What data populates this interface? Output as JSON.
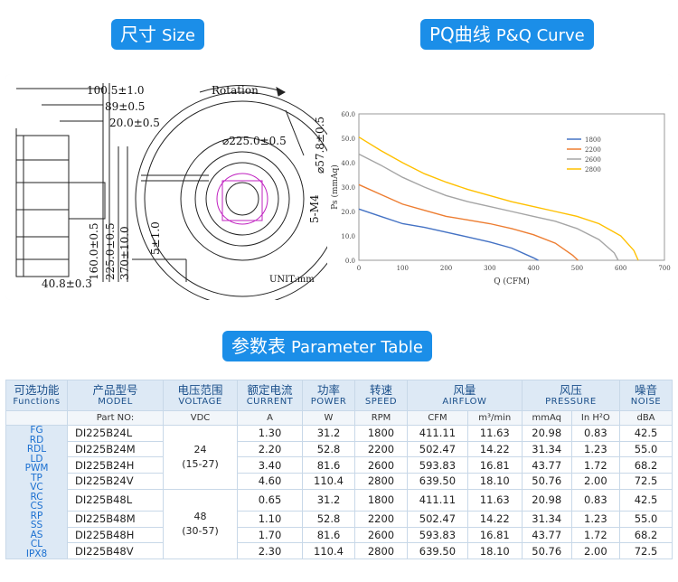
{
  "headers": {
    "size": {
      "cn": "尺寸",
      "en": "Size"
    },
    "pq": {
      "cn": "PQ曲线",
      "en": "P&Q Curve"
    },
    "params": {
      "cn": "参数表",
      "en": "Parameter Table"
    }
  },
  "drawing": {
    "d1": "100.5±1.0",
    "d2": "89±0.5",
    "d3": "20.0±0.5",
    "d4": "160.0±0.5",
    "d5": "225.0±0.5",
    "d6": "370±10.0",
    "d7": "5±1.0",
    "d8": "40.8±0.3",
    "rotation": "Rotation",
    "dia": "⌀225.0±0.5",
    "dia2": "⌀57.8±0.5",
    "screw": "5-M4",
    "unit": "UNIT:mm"
  },
  "chart_data": {
    "type": "line",
    "xlabel": "Q (CFM)",
    "ylabel": "Ps (mmAq)",
    "xlim": [
      0,
      700
    ],
    "ylim": [
      0,
      60
    ],
    "xticks": [
      "0",
      "100",
      "200",
      "300",
      "400",
      "500",
      "600",
      "700"
    ],
    "yticks": [
      "0.0",
      "10.0",
      "20.0",
      "30.0",
      "40.0",
      "50.0",
      "60.0"
    ],
    "legend_position": "right",
    "series": [
      {
        "name": "1800",
        "color": "#4472c4",
        "points": [
          [
            0,
            21
          ],
          [
            50,
            18
          ],
          [
            100,
            15
          ],
          [
            150,
            13.5
          ],
          [
            200,
            11.5
          ],
          [
            250,
            9.5
          ],
          [
            300,
            7.5
          ],
          [
            350,
            5
          ],
          [
            400,
            1
          ],
          [
            411,
            0
          ]
        ]
      },
      {
        "name": "2200",
        "color": "#ed7d31",
        "points": [
          [
            0,
            31
          ],
          [
            50,
            27
          ],
          [
            100,
            23
          ],
          [
            150,
            20.5
          ],
          [
            200,
            18
          ],
          [
            250,
            16.5
          ],
          [
            300,
            15
          ],
          [
            350,
            13
          ],
          [
            400,
            10.5
          ],
          [
            450,
            7
          ],
          [
            490,
            2
          ],
          [
            502,
            0
          ]
        ]
      },
      {
        "name": "2600",
        "color": "#a5a5a5",
        "points": [
          [
            0,
            43.5
          ],
          [
            50,
            39
          ],
          [
            100,
            34
          ],
          [
            150,
            30
          ],
          [
            200,
            26.5
          ],
          [
            250,
            24
          ],
          [
            300,
            22
          ],
          [
            350,
            20
          ],
          [
            400,
            18
          ],
          [
            450,
            16
          ],
          [
            500,
            13
          ],
          [
            550,
            8.5
          ],
          [
            585,
            3
          ],
          [
            594,
            0
          ]
        ]
      },
      {
        "name": "2800",
        "color": "#ffc000",
        "points": [
          [
            0,
            50.5
          ],
          [
            50,
            45
          ],
          [
            100,
            40
          ],
          [
            150,
            35.5
          ],
          [
            200,
            32
          ],
          [
            250,
            29
          ],
          [
            300,
            26.5
          ],
          [
            350,
            24
          ],
          [
            400,
            22
          ],
          [
            450,
            20
          ],
          [
            500,
            18
          ],
          [
            550,
            15
          ],
          [
            600,
            10
          ],
          [
            630,
            4
          ],
          [
            640,
            0
          ]
        ]
      }
    ]
  },
  "table": {
    "headers": [
      {
        "cn": "可选功能",
        "en": "Functions"
      },
      {
        "cn": "产品型号",
        "en": "MODEL"
      },
      {
        "cn": "电压范围",
        "en": "VOLTAGE"
      },
      {
        "cn": "额定电流",
        "en": "CURRENT"
      },
      {
        "cn": "功率",
        "en": "POWER"
      },
      {
        "cn": "转速",
        "en": "SPEED"
      },
      {
        "cn": "风量",
        "en": "AIRFLOW"
      },
      {
        "cn": "风压",
        "en": "PRESSURE"
      },
      {
        "cn": "噪音",
        "en": "NOISE"
      }
    ],
    "units": [
      "Part NO:",
      "VDC",
      "A",
      "W",
      "RPM",
      "CFM",
      "m³/min",
      "mmAq",
      "In H²O",
      "dBA"
    ],
    "functions": [
      "FG",
      "RD",
      "RDL",
      "LD",
      "PWM",
      "TP",
      "VC",
      "RC",
      "CS",
      "RP",
      "SS",
      "AS",
      "CL",
      "IPX8"
    ],
    "voltage_groups": [
      {
        "v": "24",
        "range": "(15-27)"
      },
      {
        "v": "48",
        "range": "(30-57)"
      }
    ],
    "rows": [
      {
        "model": "DI225B24L",
        "current": "1.30",
        "power": "31.2",
        "speed": "1800",
        "cfm": "411.11",
        "m3": "11.63",
        "mmaq": "20.98",
        "inh2o": "0.83",
        "noise": "42.5"
      },
      {
        "model": "DI225B24M",
        "current": "2.20",
        "power": "52.8",
        "speed": "2200",
        "cfm": "502.47",
        "m3": "14.22",
        "mmaq": "31.34",
        "inh2o": "1.23",
        "noise": "55.0"
      },
      {
        "model": "DI225B24H",
        "current": "3.40",
        "power": "81.6",
        "speed": "2600",
        "cfm": "593.83",
        "m3": "16.81",
        "mmaq": "43.77",
        "inh2o": "1.72",
        "noise": "68.2"
      },
      {
        "model": "DI225B24V",
        "current": "4.60",
        "power": "110.4",
        "speed": "2800",
        "cfm": "639.50",
        "m3": "18.10",
        "mmaq": "50.76",
        "inh2o": "2.00",
        "noise": "72.5"
      },
      {
        "model": "DI225B48L",
        "current": "0.65",
        "power": "31.2",
        "speed": "1800",
        "cfm": "411.11",
        "m3": "11.63",
        "mmaq": "20.98",
        "inh2o": "0.83",
        "noise": "42.5"
      },
      {
        "model": "DI225B48M",
        "current": "1.10",
        "power": "52.8",
        "speed": "2200",
        "cfm": "502.47",
        "m3": "14.22",
        "mmaq": "31.34",
        "inh2o": "1.23",
        "noise": "55.0"
      },
      {
        "model": "DI225B48H",
        "current": "1.70",
        "power": "81.6",
        "speed": "2600",
        "cfm": "593.83",
        "m3": "16.81",
        "mmaq": "43.77",
        "inh2o": "1.72",
        "noise": "68.2"
      },
      {
        "model": "DI225B48V",
        "current": "2.30",
        "power": "110.4",
        "speed": "2800",
        "cfm": "639.50",
        "m3": "18.10",
        "mmaq": "50.76",
        "inh2o": "2.00",
        "noise": "72.5"
      }
    ]
  }
}
